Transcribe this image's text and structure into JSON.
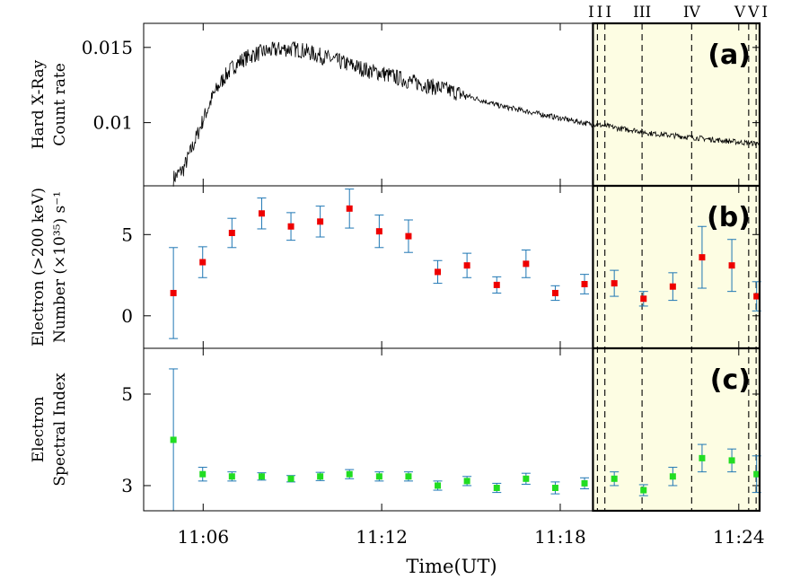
{
  "colors": {
    "highlight": "#fdfde3",
    "axis": "#000000",
    "errorbar": "#1f77b4",
    "electron_number": "#ee0000",
    "spectral_index": "#22dd22"
  },
  "highlight": {
    "x_range": [
      "11:19:06",
      "11:24:42"
    ]
  },
  "phase_lines": {
    "labels": [
      "I",
      "II",
      "III",
      "IV",
      "V",
      "VI"
    ],
    "times": [
      "11:19:15",
      "11:19:30",
      "11:20:45",
      "11:22:25",
      "11:24:20",
      "11:24:35"
    ]
  },
  "xaxis": {
    "label": "Time(UT)",
    "range": [
      "11:04:00",
      "11:24:42"
    ],
    "ticks": [
      "11:06",
      "11:12",
      "11:18",
      "11:24"
    ]
  },
  "chart_data": [
    {
      "id": "a",
      "panel_label": "(a)",
      "type": "line",
      "ylabel": [
        "Hard X-Ray",
        "Count rate"
      ],
      "ylim": [
        0.0058,
        0.0166
      ],
      "yticks": [
        0.01,
        0.015
      ],
      "ytick_labels": [
        "0.01",
        "0.015"
      ],
      "series": [
        {
          "name": "Hard X-Ray Count rate",
          "x": [
            "11:05:00",
            "11:05:20",
            "11:05:40",
            "11:06:00",
            "11:06:20",
            "11:06:40",
            "11:07:00",
            "11:07:20",
            "11:07:40",
            "11:08:00",
            "11:08:20",
            "11:08:40",
            "11:09:00",
            "11:09:20",
            "11:09:40",
            "11:10:00",
            "11:10:20",
            "11:10:40",
            "11:11:00",
            "11:11:20",
            "11:11:40",
            "11:12:00",
            "11:12:20",
            "11:12:40",
            "11:13:00",
            "11:13:20",
            "11:13:40",
            "11:14:00",
            "11:14:20",
            "11:14:40",
            "11:15:00",
            "11:15:30",
            "11:16:00",
            "11:16:30",
            "11:17:00",
            "11:17:30",
            "11:18:00",
            "11:18:30",
            "11:19:00",
            "11:19:30",
            "11:20:00",
            "11:20:30",
            "11:21:00",
            "11:21:30",
            "11:22:00",
            "11:22:30",
            "11:23:00",
            "11:23:30",
            "11:24:00",
            "11:24:40"
          ],
          "values": [
            0.0063,
            0.0069,
            0.0085,
            0.0102,
            0.0118,
            0.0129,
            0.0137,
            0.0142,
            0.0145,
            0.0147,
            0.0148,
            0.0149,
            0.0149,
            0.0148,
            0.0146,
            0.0144,
            0.0142,
            0.014,
            0.0138,
            0.0136,
            0.0134,
            0.0133,
            0.0131,
            0.0129,
            0.0127,
            0.0126,
            0.0124,
            0.0123,
            0.0121,
            0.0119,
            0.0117,
            0.0114,
            0.0111,
            0.0109,
            0.0107,
            0.0105,
            0.0103,
            0.0101,
            0.0099,
            0.0098,
            0.0096,
            0.0095,
            0.0093,
            0.0092,
            0.0091,
            0.009,
            0.0089,
            0.0088,
            0.0087,
            0.0086
          ]
        }
      ]
    },
    {
      "id": "b",
      "panel_label": "(b)",
      "type": "scatter",
      "ylabel": [
        "Electron (>200 keV)",
        "Number (×10³⁵) s⁻¹"
      ],
      "ylim": [
        -2,
        8
      ],
      "yticks": [
        0,
        5
      ],
      "ytick_labels": [
        "0",
        "5"
      ],
      "series": [
        {
          "name": "Electron Number",
          "x": [
            "11:05:00",
            "11:05:59",
            "11:06:58",
            "11:07:58",
            "11:08:57",
            "11:09:56",
            "11:10:55",
            "11:11:55",
            "11:12:54",
            "11:13:53",
            "11:14:52",
            "11:15:52",
            "11:16:51",
            "11:17:50",
            "11:18:49",
            "11:19:49",
            "11:20:48",
            "11:21:47",
            "11:22:46",
            "11:23:46",
            "11:24:36"
          ],
          "values": [
            1.4,
            3.3,
            5.1,
            6.3,
            5.5,
            5.8,
            6.6,
            5.2,
            4.9,
            2.7,
            3.1,
            1.9,
            3.2,
            1.4,
            1.95,
            2.0,
            1.05,
            1.8,
            3.6,
            3.1,
            1.2
          ],
          "errors": [
            2.8,
            0.95,
            0.9,
            0.95,
            0.85,
            0.95,
            1.2,
            1.0,
            1.0,
            0.7,
            0.75,
            0.5,
            0.85,
            0.45,
            0.6,
            0.8,
            0.45,
            0.85,
            1.9,
            1.6,
            0.9
          ]
        }
      ]
    },
    {
      "id": "c",
      "panel_label": "(c)",
      "type": "scatter",
      "ylabel": [
        "Electron",
        "Spectral Index"
      ],
      "ylim": [
        2.45,
        6.0
      ],
      "yticks": [
        3,
        5
      ],
      "ytick_labels": [
        "3",
        "5"
      ],
      "series": [
        {
          "name": "Electron Spectral Index",
          "x": [
            "11:05:00",
            "11:05:59",
            "11:06:58",
            "11:07:58",
            "11:08:57",
            "11:09:56",
            "11:10:55",
            "11:11:55",
            "11:12:54",
            "11:13:53",
            "11:14:52",
            "11:15:52",
            "11:16:51",
            "11:17:50",
            "11:18:49",
            "11:19:49",
            "11:20:48",
            "11:21:47",
            "11:22:46",
            "11:23:46",
            "11:24:36"
          ],
          "values": [
            4.0,
            3.25,
            3.2,
            3.2,
            3.15,
            3.2,
            3.25,
            3.2,
            3.2,
            3.0,
            3.1,
            2.95,
            3.15,
            2.95,
            3.05,
            3.15,
            2.9,
            3.2,
            3.6,
            3.55,
            3.25
          ],
          "errors": [
            1.55,
            0.15,
            0.1,
            0.08,
            0.07,
            0.09,
            0.1,
            0.1,
            0.1,
            0.1,
            0.1,
            0.1,
            0.12,
            0.13,
            0.12,
            0.15,
            0.12,
            0.2,
            0.3,
            0.25,
            0.4
          ]
        }
      ]
    }
  ]
}
